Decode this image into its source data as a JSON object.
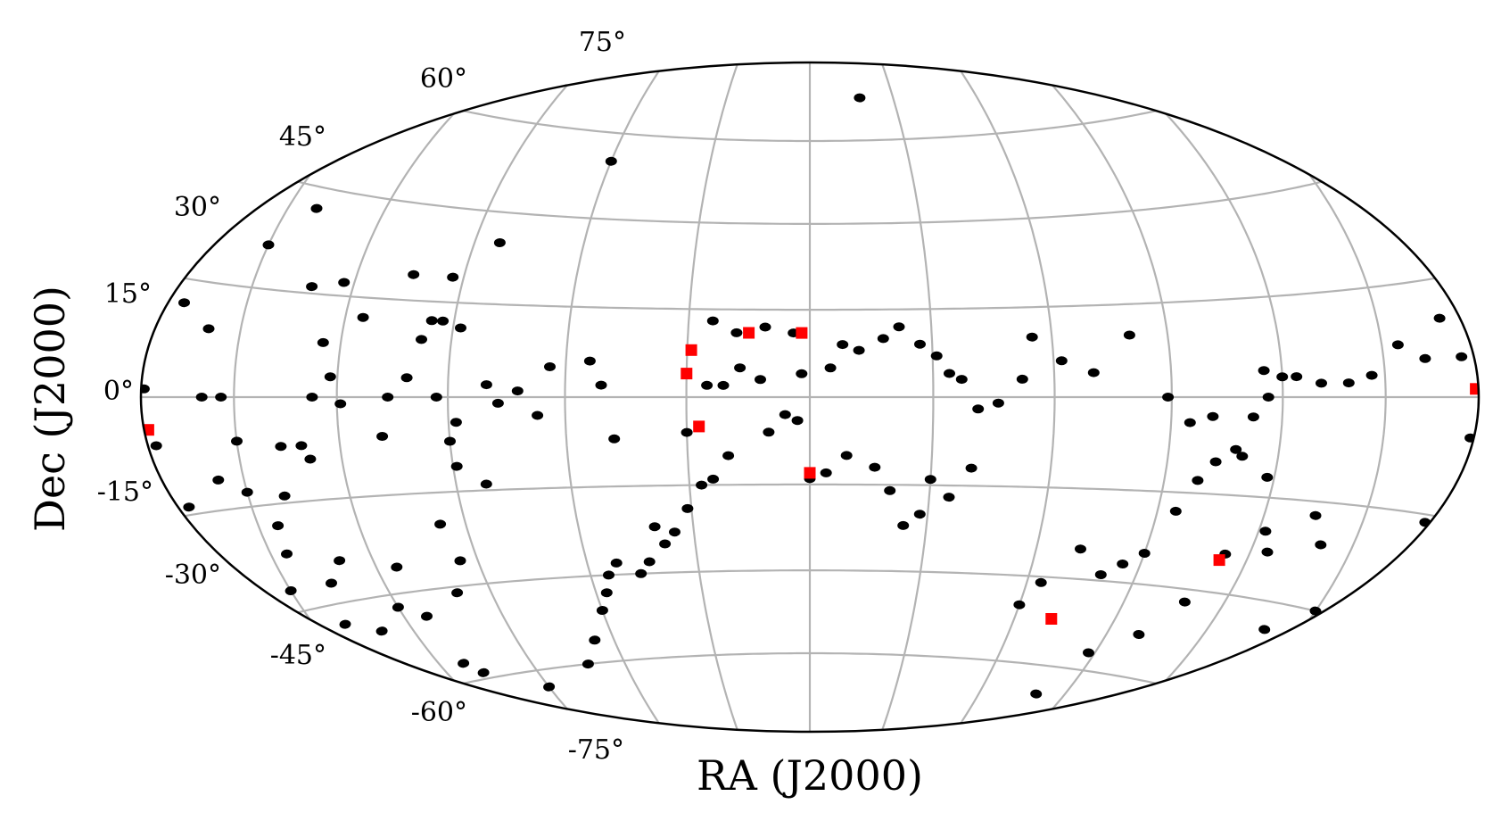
{
  "chart_data": {
    "type": "scatter",
    "projection": "aitoff/hammer (all-sky)",
    "xlabel": "RA (J2000)",
    "ylabel": "Dec (J2000)",
    "ytick_labels": [
      "75°",
      "60°",
      "45°",
      "30°",
      "15°",
      "0°",
      "-15°",
      "-30°",
      "-45°",
      "-60°",
      "-75°"
    ],
    "grid": true,
    "series": [
      {
        "marker": "ellipse",
        "color": "#000000",
        "points": [
          [
            179,
            1
          ],
          [
            170,
            12
          ],
          [
            160,
            9
          ],
          [
            150,
            21
          ],
          [
            141,
            27
          ],
          [
            125,
            8
          ],
          [
            122,
            3
          ],
          [
            119,
            -1
          ],
          [
            101,
            3
          ],
          [
            123,
            17
          ],
          [
            132,
            16
          ],
          [
            160,
            0
          ],
          [
            154,
            0
          ],
          [
            150,
            -6
          ],
          [
            170,
            -14
          ],
          [
            176,
            -6
          ],
          [
            158,
            -11
          ],
          [
            150,
            -13
          ],
          [
            144,
            -18
          ],
          [
            129,
            -9
          ],
          [
            130,
            -24
          ],
          [
            136,
            -27
          ],
          [
            140,
            -33
          ],
          [
            130,
            -35
          ],
          [
            120,
            -32
          ],
          [
            114,
            -26
          ],
          [
            113,
            -34
          ],
          [
            112,
            -42
          ],
          [
            108,
            -44
          ],
          [
            100,
            -31
          ],
          [
            97,
            -20
          ],
          [
            95,
            -26
          ],
          [
            90,
            -48
          ],
          [
            108,
            -6
          ],
          [
            106,
            0
          ],
          [
            93,
            0
          ],
          [
            98,
            9
          ],
          [
            96,
            12
          ],
          [
            93,
            12
          ],
          [
            88,
            11
          ],
          [
            80,
            2
          ],
          [
            88,
            -4
          ],
          [
            90,
            -7
          ],
          [
            89,
            -11
          ],
          [
            82,
            -14
          ],
          [
            77,
            -1
          ],
          [
            72,
            1
          ],
          [
            67,
            -3
          ],
          [
            64,
            5
          ],
          [
            54,
            6
          ],
          [
            51,
            2
          ],
          [
            48,
            -7
          ],
          [
            40,
            -22
          ],
          [
            30,
            -6
          ],
          [
            25,
            2
          ],
          [
            21,
            2
          ],
          [
            17,
            5
          ],
          [
            18,
            11
          ],
          [
            24,
            13
          ],
          [
            11,
            12
          ],
          [
            4,
            11
          ],
          [
            2,
            4
          ],
          [
            -5,
            5
          ],
          [
            -8,
            9
          ],
          [
            -12,
            8
          ],
          [
            -18,
            10
          ],
          [
            -22,
            12
          ],
          [
            -27,
            9
          ],
          [
            -31,
            7
          ],
          [
            -34,
            4
          ],
          [
            -37,
            3
          ],
          [
            -41,
            -2
          ],
          [
            -46,
            -1
          ],
          [
            -52,
            3
          ],
          [
            -55,
            10
          ],
          [
            -62,
            6
          ],
          [
            -70,
            4
          ],
          [
            -80,
            10
          ],
          [
            -89,
            0
          ],
          [
            -95,
            -4
          ],
          [
            -101,
            -3
          ],
          [
            -110,
            -9
          ],
          [
            -118,
            -12
          ],
          [
            -125,
            -23
          ],
          [
            -135,
            -17
          ],
          [
            -140,
            -21
          ],
          [
            -150,
            -30
          ],
          [
            -160,
            -28
          ],
          [
            -170,
            -16
          ],
          [
            -178,
            -5
          ],
          [
            -175,
            5
          ],
          [
            -170,
            10
          ],
          [
            -163,
            5
          ],
          [
            -155,
            7
          ],
          [
            -146,
            3
          ],
          [
            -139,
            2
          ],
          [
            -131,
            2
          ],
          [
            -124,
            3
          ],
          [
            -120,
            3
          ],
          [
            -115,
            4
          ],
          [
            -116,
            0
          ],
          [
            -112,
            -3
          ],
          [
            -108,
            -8
          ],
          [
            -103,
            -10
          ],
          [
            -99,
            -13
          ],
          [
            -95,
            -18
          ],
          [
            -90,
            -25
          ],
          [
            -85,
            -27
          ],
          [
            -80,
            -29
          ],
          [
            -72,
            -25
          ],
          [
            -64,
            -31
          ],
          [
            -60,
            -35
          ],
          [
            -40,
            -12
          ],
          [
            -35,
            -17
          ],
          [
            -30,
            -14
          ],
          [
            -28,
            -20
          ],
          [
            -24,
            -22
          ],
          [
            -20,
            -16
          ],
          [
            -16,
            -12
          ],
          [
            -9,
            -10
          ],
          [
            -4,
            -13
          ],
          [
            0,
            -14
          ],
          [
            3,
            -4
          ],
          [
            6,
            -3
          ],
          [
            10,
            -6
          ],
          [
            12,
            3
          ],
          [
            20,
            -10
          ],
          [
            24,
            -14
          ],
          [
            27,
            -15
          ],
          [
            31,
            -19
          ],
          [
            35,
            -23
          ],
          [
            38,
            -25
          ],
          [
            43,
            -28
          ],
          [
            46,
            -30
          ],
          [
            52,
            -28
          ],
          [
            55,
            -30
          ],
          [
            57,
            -33
          ],
          [
            60,
            -36
          ],
          [
            66,
            -41
          ],
          [
            72,
            -45
          ],
          [
            -46,
            -61
          ],
          [
            -70,
            -58
          ],
          [
            -80,
            -50
          ],
          [
            -88,
            -42
          ],
          [
            -100,
            -38
          ],
          [
            -108,
            -32
          ],
          [
            -113,
            -24
          ],
          [
            -122,
            -20
          ],
          [
            -138,
            -34
          ],
          [
            -144,
            -40
          ],
          [
            -152,
            -38
          ],
          [
            -169,
            -26
          ],
          [
            -175,
            -20
          ],
          [
            178,
            -15
          ],
          [
            170,
            -24
          ],
          [
            164,
            -32
          ],
          [
            156,
            -30
          ],
          [
            150,
            -27
          ],
          [
            145,
            -22
          ],
          [
            139,
            -14
          ],
          [
            137,
            -7
          ],
          [
            131,
            -7
          ],
          [
            127,
            0
          ],
          [
            115,
            12
          ],
          [
            104,
            19
          ],
          [
            93,
            19
          ],
          [
            83,
            25
          ],
          [
            60,
            40
          ],
          [
            -18,
            53
          ]
        ]
      },
      {
        "marker": "square",
        "color": "#ff0000",
        "points": [
          [
            -179,
            1
          ],
          [
            2,
            11
          ],
          [
            15,
            11
          ],
          [
            29,
            8
          ],
          [
            30,
            4
          ],
          [
            27,
            -5
          ],
          [
            0,
            -13
          ],
          [
            -71,
            -37
          ],
          [
            -112,
            -25
          ],
          [
            178,
            -4
          ]
        ]
      }
    ]
  }
}
